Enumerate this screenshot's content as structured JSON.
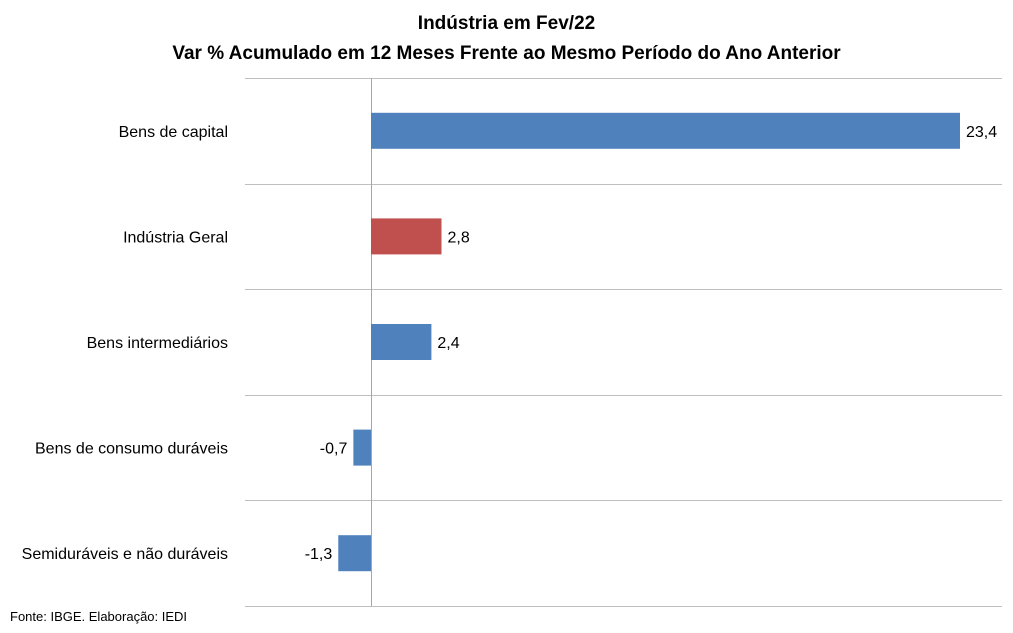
{
  "chart_data": {
    "type": "bar",
    "orientation": "horizontal",
    "title": "Indústria em Fev/22",
    "subtitle": "Var % Acumulado em 12 Meses Frente ao Mesmo Período do Ano Anterior",
    "categories": [
      "Bens de capital",
      "Indústria Geral",
      "Bens intermediários",
      "Bens de consumo duráveis",
      "Semiduráveis e não duráveis"
    ],
    "values": [
      23.4,
      2.8,
      2.4,
      -0.7,
      -1.3
    ],
    "value_labels": [
      "23,4",
      "2,8",
      "2,4",
      "-0,7",
      "-1,3"
    ],
    "bar_colors": [
      "#4F81BD",
      "#C0504D",
      "#4F81BD",
      "#4F81BD",
      "#4F81BD"
    ],
    "xlim": [
      -4.5,
      25
    ],
    "grid": "horizontal separators",
    "legend": "none"
  },
  "source": "Fonte: IBGE. Elaboração: IEDI"
}
